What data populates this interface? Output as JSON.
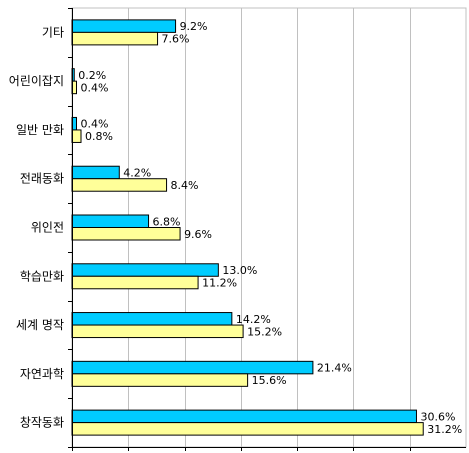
{
  "chart_data": {
    "type": "bar",
    "orientation": "horizontal",
    "categories": [
      "기타",
      "어린이잡지",
      "일반 만화",
      "전래동화",
      "위인전",
      "학습만화",
      "세계 명작",
      "자연과학",
      "창작동화"
    ],
    "series": [
      {
        "color": "#00CCFF",
        "values": [
          9.2,
          0.2,
          0.4,
          4.2,
          6.8,
          13.0,
          14.2,
          21.4,
          30.6
        ],
        "labels": [
          "9.2%",
          "0.2%",
          "0.4%",
          "4.2%",
          "6.8%",
          "13.0%",
          "14.2%",
          "21.4%",
          "30.6%"
        ]
      },
      {
        "color": "#FFFF99",
        "values": [
          7.6,
          0.4,
          0.8,
          8.4,
          9.6,
          11.2,
          15.2,
          15.6,
          31.2
        ],
        "labels": [
          "7.6%",
          "0.4%",
          "0.8%",
          "8.4%",
          "9.6%",
          "11.2%",
          "15.2%",
          "15.6%",
          "31.2%"
        ]
      }
    ],
    "xlim": [
      0,
      35
    ],
    "x_gridlines": [
      5,
      10,
      15,
      20,
      25,
      30
    ],
    "grid": true,
    "legend": "none",
    "grid_color": "#C0C0C0",
    "outline_color": "#000000"
  }
}
